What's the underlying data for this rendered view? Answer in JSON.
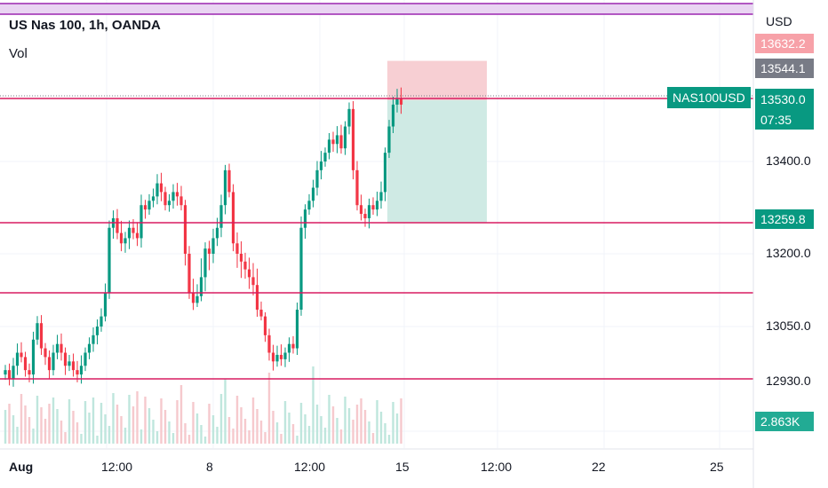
{
  "legend": {
    "title": "US Nas 100, 1h, OANDA",
    "vol": "Vol"
  },
  "axis": {
    "currency": "USD",
    "tags": {
      "upper": "13632.2",
      "target": "13544.1",
      "last_price": "13530.0",
      "countdown": "07:35",
      "stop": "13259.8",
      "volume": "2.863K"
    },
    "ticks": [
      "13400.0",
      "13200.0",
      "13050.0",
      "12930.0"
    ],
    "x_labels": [
      "Aug",
      "12:00",
      "8",
      "12:00",
      "15",
      "12:00",
      "22",
      "25"
    ]
  },
  "symbol_tag": "NAS100USD",
  "colors": {
    "up": "#089981",
    "down": "#f23645",
    "level_line": "#d81b60",
    "purple": "#9c27b0"
  },
  "chart_data": {
    "type": "candlestick",
    "horizontal_levels": [
      13544,
      13259.8,
      13150,
      12930
    ],
    "position": {
      "entry": 13540,
      "target": 13630,
      "stop": 13260
    },
    "closes": [
      12950,
      12930,
      12960,
      12990,
      12980,
      12950,
      12940,
      13020,
      13060,
      13000,
      12980,
      12950,
      12990,
      13010,
      12990,
      12960,
      12970,
      12950,
      12940,
      12960,
      12990,
      13010,
      13030,
      13050,
      13080,
      13150,
      13250,
      13270,
      13240,
      13220,
      13230,
      13250,
      13240,
      13230,
      13300,
      13290,
      13310,
      13320,
      13350,
      13330,
      13300,
      13310,
      13330,
      13320,
      13300,
      13200,
      13150,
      13120,
      13140,
      13170,
      13210,
      13200,
      13230,
      13250,
      13300,
      13380,
      13330,
      13220,
      13200,
      13190,
      13180,
      13170,
      13160,
      13100,
      13080,
      13030,
      12990,
      12970,
      12985,
      12975,
      12990,
      13010,
      13000,
      13100,
      13250,
      13290,
      13310,
      13340,
      13380,
      13400,
      13420,
      13450,
      13440,
      13460,
      13430,
      13480,
      13520,
      13380,
      13300,
      13280,
      13270,
      13300,
      13290,
      13310,
      13330,
      13420,
      13480,
      13530,
      13545,
      13530
    ]
  }
}
